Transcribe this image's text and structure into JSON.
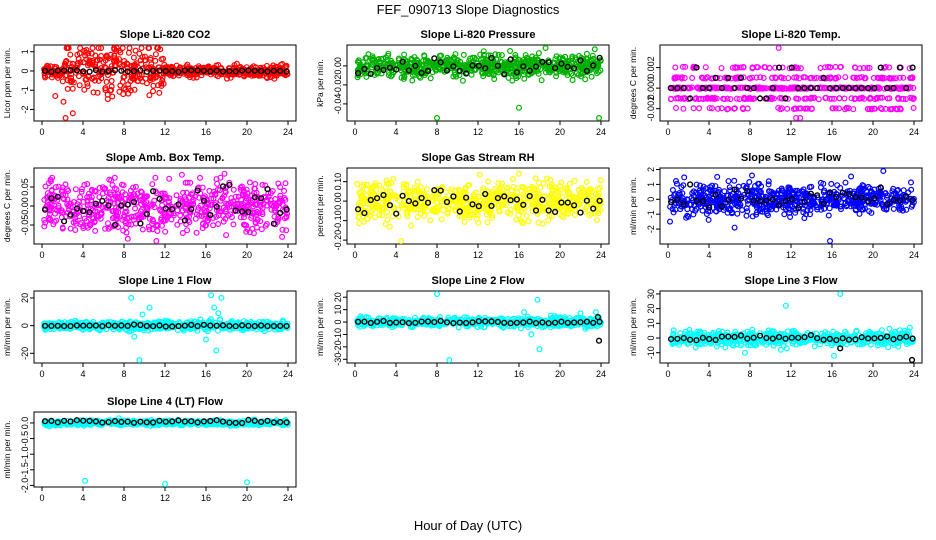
{
  "figure": {
    "title": "FEF_090713  Slope Diagnostics",
    "xlabel": "Hour of Day (UTC)"
  },
  "chart_data": [
    {
      "type": "scatter",
      "title": "Slope Li-820 CO2",
      "xlabel": "Hour of Day (UTC)",
      "ylabel": "Licor ppm per min.",
      "xlim": [
        0,
        24
      ],
      "xticks": [
        0,
        4,
        8,
        12,
        16,
        20,
        24
      ],
      "ylim": [
        -2.6,
        1.35
      ],
      "yticks": [
        -2,
        -1,
        0,
        1
      ],
      "ytick_labels": [
        "-2",
        "-1",
        "0",
        "1"
      ],
      "series": [
        {
          "name": "all",
          "color": "#ff0000",
          "spread": 0.35,
          "noisy_hours": [
            2,
            12
          ],
          "points": 640,
          "outliers": [
            [
              2.3,
              -2.5
            ],
            [
              2.1,
              -1.6
            ],
            [
              1.3,
              -1.3
            ],
            [
              7.3,
              1.2
            ],
            [
              9.5,
              0.9
            ],
            [
              4.2,
              0.8
            ],
            [
              6.8,
              -0.8
            ],
            [
              3.0,
              -2.2
            ]
          ]
        },
        {
          "name": "hourly",
          "color": "#000000",
          "spread": 0.03,
          "value": 0.0
        }
      ]
    },
    {
      "type": "scatter",
      "title": "Slope Li-820 Pressure",
      "xlabel": "Hour of Day (UTC)",
      "ylabel": "kPa per min.",
      "xlim": [
        0,
        24
      ],
      "xticks": [
        0,
        4,
        8,
        12,
        16,
        20,
        24
      ],
      "ylim": [
        -0.058,
        0.022
      ],
      "yticks": [
        -0.04,
        -0.02,
        0.0
      ],
      "ytick_labels": [
        "-0.04",
        "-0.02",
        "0.00"
      ],
      "series": [
        {
          "name": "all",
          "color": "#00b000",
          "spread": 0.006,
          "points": 640,
          "outliers": [
            [
              8.0,
              -0.055
            ],
            [
              16.0,
              -0.044
            ],
            [
              23.8,
              -0.057
            ],
            [
              18.6,
              0.019
            ]
          ]
        },
        {
          "name": "hourly",
          "color": "#000000",
          "spread": 0.004,
          "value": 0.0
        }
      ]
    },
    {
      "type": "scatter",
      "title": "Slope Li-820 Temp.",
      "xlabel": "Hour of Day (UTC)",
      "ylabel": "degrees C per min.",
      "xlim": [
        0,
        24
      ],
      "xticks": [
        0,
        4,
        8,
        12,
        16,
        20,
        24
      ],
      "ylim": [
        -0.0032,
        0.0042
      ],
      "yticks": [
        -0.002,
        0.0,
        0.002
      ],
      "ytick_labels": [
        "-0.002",
        "0.000",
        "0.002"
      ],
      "levels": [
        -0.002,
        -0.001,
        0.0,
        0.001,
        0.002
      ],
      "series": [
        {
          "name": "all",
          "color": "#ff00ff",
          "points": 560,
          "outliers": [
            [
              10.8,
              0.0041
            ],
            [
              12.9,
              -0.003
            ],
            [
              12.5,
              -0.003
            ]
          ]
        },
        {
          "name": "hourly",
          "color": "#000000",
          "value": 0.0
        }
      ]
    },
    {
      "type": "scatter",
      "title": "Slope Amb. Box Temp.",
      "xlabel": "Hour of Day (UTC)",
      "ylabel": "degrees C per min.",
      "xlim": [
        0,
        24
      ],
      "xticks": [
        0,
        4,
        8,
        12,
        16,
        20,
        24
      ],
      "ylim": [
        -0.1,
        0.1
      ],
      "yticks": [
        -0.05,
        0.0,
        0.05
      ],
      "ytick_labels": [
        "-0.05",
        "0.00",
        "0.05"
      ],
      "series": [
        {
          "name": "all",
          "color": "#ff00ff",
          "spread": 0.035,
          "points": 640,
          "outliers": [
            [
              17.8,
              0.085
            ]
          ]
        },
        {
          "name": "hourly",
          "color": "#000000",
          "spread": 0.025,
          "value": 0.0
        }
      ]
    },
    {
      "type": "scatter",
      "title": "Slope Gas Stream RH",
      "xlabel": "Hour of Day (UTC)",
      "ylabel": "percent per min.",
      "xlim": [
        0,
        24
      ],
      "xticks": [
        0,
        4,
        8,
        12,
        16,
        20,
        24
      ],
      "ylim": [
        -0.22,
        0.17
      ],
      "yticks": [
        -0.2,
        -0.1,
        0.0,
        0.1
      ],
      "ytick_labels": [
        "-0.20",
        "-0.10",
        "0.00",
        "0.10"
      ],
      "series": [
        {
          "name": "all",
          "color": "#ffff00",
          "spread": 0.05,
          "points": 640,
          "outliers": [
            [
              4.5,
              -0.21
            ],
            [
              16.0,
              0.14
            ]
          ]
        },
        {
          "name": "hourly",
          "color": "#000000",
          "spread": 0.035,
          "value": 0.0
        }
      ]
    },
    {
      "type": "scatter",
      "title": "Slope Sample Flow",
      "xlabel": "Hour of Day (UTC)",
      "ylabel": "ml/min per min.",
      "xlim": [
        0,
        24
      ],
      "xticks": [
        0,
        4,
        8,
        12,
        16,
        20,
        24
      ],
      "ylim": [
        -3.0,
        2.1
      ],
      "yticks": [
        -2,
        -1,
        0,
        1,
        2
      ],
      "ytick_labels": [
        "-2",
        "-1",
        "0",
        "1",
        "2"
      ],
      "series": [
        {
          "name": "all",
          "color": "#0000ff",
          "spread": 0.5,
          "points": 640,
          "outliers": [
            [
              15.8,
              -2.9
            ],
            [
              21.0,
              1.9
            ],
            [
              4.8,
              1.5
            ],
            [
              6.5,
              -1.9
            ],
            [
              0.2,
              -1.5
            ],
            [
              8.2,
              1.6
            ],
            [
              22.6,
              -0.7
            ]
          ]
        },
        {
          "name": "hourly",
          "color": "#000000",
          "spread": 0.35,
          "value": 0.0
        }
      ]
    },
    {
      "type": "scatter",
      "title": "Slope Line 1 Flow",
      "xlabel": "Hour of Day (UTC)",
      "ylabel": "ml/min per min.",
      "xlim": [
        0,
        24
      ],
      "xticks": [
        0,
        4,
        8,
        12,
        16,
        20,
        24
      ],
      "ylim": [
        -27,
        25
      ],
      "yticks": [
        -20,
        0,
        20
      ],
      "ytick_labels": [
        "-20",
        "0",
        "20"
      ],
      "series": [
        {
          "name": "all",
          "color": "#00ffff",
          "spread": 1.6,
          "points": 600,
          "outliers": [
            [
              9.5,
              -25
            ],
            [
              16.5,
              22
            ],
            [
              8.7,
              20
            ],
            [
              17.5,
              20
            ],
            [
              16.0,
              -10
            ],
            [
              9.0,
              -8
            ],
            [
              17.0,
              -18
            ],
            [
              10.5,
              13
            ],
            [
              16.8,
              13
            ],
            [
              9.8,
              8
            ],
            [
              17.2,
              9
            ]
          ]
        },
        {
          "name": "hourly",
          "color": "#000000",
          "spread": 0.4,
          "value": 0.0
        }
      ]
    },
    {
      "type": "scatter",
      "title": "Slope Line 2 Flow",
      "xlabel": "Hour of Day (UTC)",
      "ylabel": "ml/min per min.",
      "xlim": [
        0,
        24
      ],
      "xticks": [
        0,
        4,
        8,
        12,
        16,
        20,
        24
      ],
      "ylim": [
        -33,
        25
      ],
      "yticks": [
        -30,
        -20,
        -10,
        0,
        10,
        20
      ],
      "ytick_labels": [
        "-30",
        "-20",
        "-10",
        "0",
        "10",
        "20"
      ],
      "series": [
        {
          "name": "all",
          "color": "#00ffff",
          "spread": 1.8,
          "points": 600,
          "outliers": [
            [
              8.0,
              23
            ],
            [
              9.2,
              -31
            ],
            [
              17.8,
              18
            ],
            [
              17.2,
              -10
            ],
            [
              18.0,
              -22
            ],
            [
              22.0,
              7
            ],
            [
              16.5,
              8
            ],
            [
              23.5,
              8
            ]
          ]
        },
        {
          "name": "hourly",
          "color": "#000000",
          "spread": 0.5,
          "value": 0.0,
          "extra": [
            [
              23.8,
              -15
            ],
            [
              23.7,
              4
            ]
          ]
        }
      ]
    },
    {
      "type": "scatter",
      "title": "Slope Line 3 Flow",
      "xlabel": "Hour of Day (UTC)",
      "ylabel": "ml/min per min.",
      "xlim": [
        0,
        24
      ],
      "xticks": [
        0,
        4,
        8,
        12,
        16,
        20,
        24
      ],
      "ylim": [
        -17,
        32
      ],
      "yticks": [
        -10,
        0,
        10,
        20,
        30
      ],
      "ytick_labels": [
        "-10",
        "0",
        "10",
        "20",
        "30"
      ],
      "series": [
        {
          "name": "all",
          "color": "#00ffff",
          "spread": 2.5,
          "points": 600,
          "outliers": [
            [
              11.5,
              22
            ],
            [
              16.8,
              31
            ],
            [
              7.5,
              -10
            ],
            [
              11.0,
              -8
            ],
            [
              16.2,
              -12
            ],
            [
              23.6,
              7
            ],
            [
              18.4,
              5
            ]
          ]
        },
        {
          "name": "hourly",
          "color": "#000000",
          "spread": 1.0,
          "value": 0.0,
          "extra": [
            [
              23.8,
              -16
            ],
            [
              16.8,
              -7
            ]
          ]
        }
      ]
    },
    {
      "type": "scatter",
      "title": "Slope Line 4 (LT) Flow",
      "xlabel": "Hour of Day (UTC)",
      "ylabel": "ml/min per min.",
      "xlim": [
        0,
        24
      ],
      "xticks": [
        0,
        4,
        8,
        12,
        16,
        20,
        24
      ],
      "ylim": [
        -2.05,
        0.35
      ],
      "yticks": [
        -2.0,
        -1.5,
        -1.0,
        -0.5,
        0.0
      ],
      "ytick_labels": [
        "-2.0",
        "-1.5",
        "-1.0",
        "-0.5",
        "0.0"
      ],
      "series": [
        {
          "name": "all",
          "color": "#00ffff",
          "spread": 0.04,
          "points": 560,
          "outliers": [
            [
              4.2,
              -1.85
            ],
            [
              12.0,
              -1.98
            ],
            [
              20.0,
              -1.9
            ],
            [
              7.5,
              0.15
            ]
          ]
        },
        {
          "name": "hourly",
          "color": "#000000",
          "spread": 0.03,
          "value": 0.05
        }
      ]
    }
  ]
}
